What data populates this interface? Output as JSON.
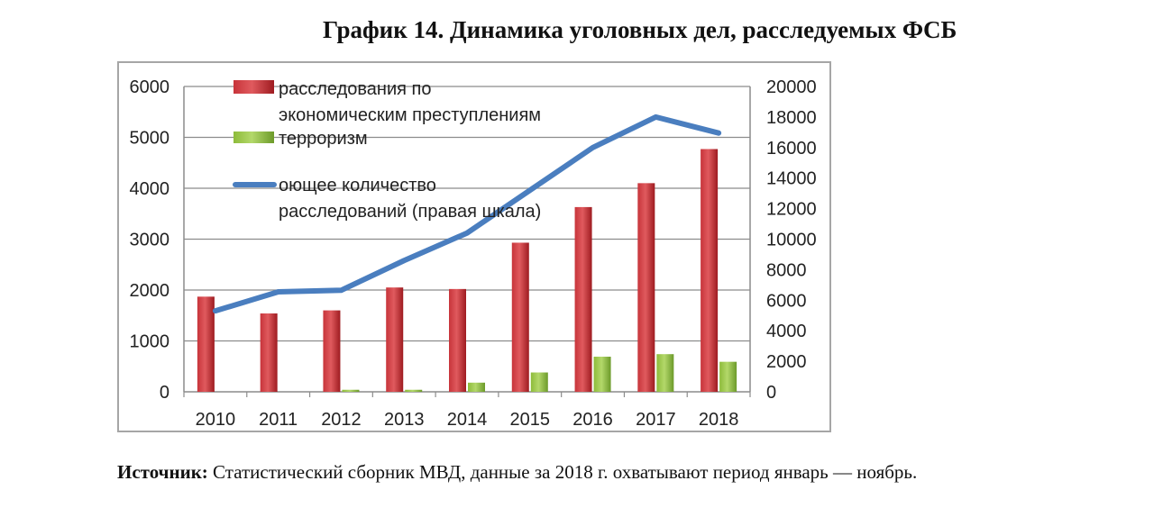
{
  "title": "График 14. Динамика уголовных дел, расследуемых ФСБ",
  "source": {
    "label": "Источник:",
    "text": "Статистический сборник МВД, данные за 2018 г. охватывают период январь — ноябрь."
  },
  "colors": {
    "economic": "#c0282e",
    "terrorism": "#8dbb3a",
    "total": "#4a7ebf",
    "grid": "#8c8c8c",
    "axis": "#8c8c8c"
  },
  "chart_data": {
    "type": "bar",
    "categories": [
      "2010",
      "2011",
      "2012",
      "2013",
      "2014",
      "2015",
      "2016",
      "2017",
      "2018"
    ],
    "series": [
      {
        "name": "расследования по экономическим преступлениям",
        "legend_lines": [
          "расследования по",
          "экономическим преступлениям"
        ],
        "kind": "bar",
        "axis": "left",
        "values": [
          1870,
          1540,
          1600,
          2050,
          2020,
          2930,
          3630,
          4100,
          4770
        ]
      },
      {
        "name": "терроризм",
        "legend_lines": [
          "терроризм"
        ],
        "kind": "bar",
        "axis": "left",
        "values": [
          0,
          0,
          40,
          40,
          180,
          380,
          690,
          740,
          590
        ]
      },
      {
        "name": "оющее количество расследований (правая шкала)",
        "legend_lines": [
          "оющее количество",
          "расследований (правая шкала)"
        ],
        "kind": "line",
        "axis": "right",
        "values": [
          5300,
          6550,
          6650,
          8600,
          10400,
          13200,
          16000,
          18000,
          16950
        ]
      }
    ],
    "y_left": {
      "min": 0,
      "max": 6000,
      "ticks": [
        0,
        1000,
        2000,
        3000,
        4000,
        5000,
        6000
      ]
    },
    "y_right": {
      "min": 0,
      "max": 20000,
      "ticks": [
        0,
        2000,
        4000,
        6000,
        8000,
        10000,
        12000,
        14000,
        16000,
        18000,
        20000
      ]
    },
    "grid": true,
    "legend": "top-left"
  }
}
